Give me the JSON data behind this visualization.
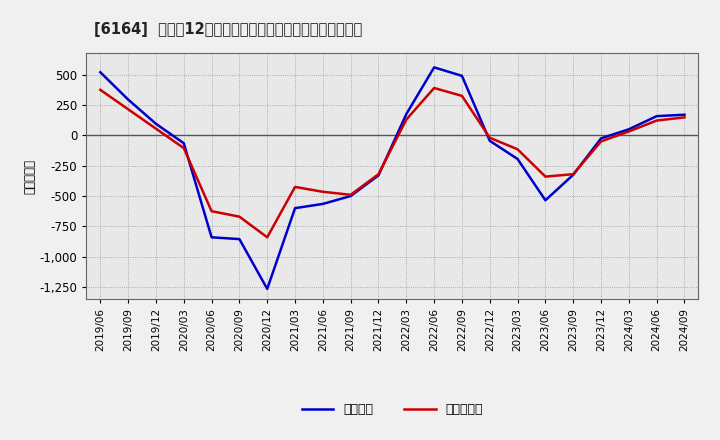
{
  "title": "[6164]  利益だ12か月移動合計の対前年同期増減額の推移",
  "ylabel": "（百万円）",
  "background_color": "#f0f0f0",
  "plot_bg_color": "#e8e8e8",
  "grid_color": "#999999",
  "zero_line_color": "#555555",
  "ylim": [
    -1350,
    680
  ],
  "yticks": [
    -1250,
    -1000,
    -750,
    -500,
    -250,
    0,
    250,
    500
  ],
  "legend_labels": [
    "経常利益",
    "当期純利益"
  ],
  "line_colors": [
    "#0000cc",
    "#cc0000"
  ],
  "x_labels": [
    "2019/06",
    "2019/09",
    "2019/12",
    "2020/03",
    "2020/06",
    "2020/09",
    "2020/12",
    "2021/03",
    "2021/06",
    "2021/09",
    "2021/12",
    "2022/03",
    "2022/06",
    "2022/09",
    "2022/12",
    "2023/03",
    "2023/06",
    "2023/09",
    "2023/12",
    "2024/03",
    "2024/06",
    "2024/09"
  ],
  "operating_profit": [
    520,
    295,
    95,
    -65,
    -840,
    -855,
    -1265,
    -600,
    -565,
    -500,
    -330,
    175,
    560,
    490,
    -45,
    -195,
    -535,
    -325,
    -25,
    50,
    158,
    170
  ],
  "net_profit": [
    375,
    215,
    55,
    -105,
    -625,
    -670,
    -840,
    -425,
    -465,
    -490,
    -320,
    130,
    390,
    325,
    -20,
    -115,
    -340,
    -320,
    -50,
    32,
    122,
    148
  ]
}
